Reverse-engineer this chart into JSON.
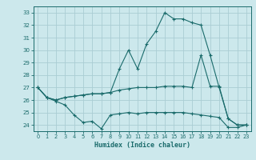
{
  "xlabel": "Humidex (Indice chaleur)",
  "background_color": "#cce8ec",
  "grid_color": "#aacdd4",
  "line_color": "#1a6b6b",
  "xlim": [
    -0.5,
    23.5
  ],
  "ylim": [
    23.5,
    33.5
  ],
  "x_ticks": [
    0,
    1,
    2,
    3,
    4,
    5,
    6,
    7,
    8,
    9,
    10,
    11,
    12,
    13,
    14,
    15,
    16,
    17,
    18,
    19,
    20,
    21,
    22,
    23
  ],
  "y_ticks": [
    24,
    25,
    26,
    27,
    28,
    29,
    30,
    31,
    32,
    33
  ],
  "series": [
    [
      27.0,
      26.2,
      25.9,
      25.6,
      24.8,
      24.2,
      24.3,
      23.7,
      24.8,
      24.9,
      25.0,
      24.9,
      25.0,
      25.0,
      25.0,
      25.0,
      25.0,
      24.9,
      24.8,
      24.7,
      24.6,
      23.8,
      23.8,
      24.0
    ],
    [
      27.0,
      26.2,
      26.0,
      26.2,
      26.3,
      26.4,
      26.5,
      26.5,
      26.6,
      26.8,
      26.9,
      27.0,
      27.0,
      27.0,
      27.1,
      27.1,
      27.1,
      27.0,
      29.6,
      27.1,
      27.1,
      24.5,
      24.0,
      24.0
    ],
    [
      27.0,
      26.2,
      26.0,
      26.2,
      26.3,
      26.4,
      26.5,
      26.5,
      26.6,
      28.5,
      30.0,
      28.5,
      30.5,
      31.5,
      33.0,
      32.5,
      32.5,
      32.2,
      32.0,
      29.6,
      27.0,
      24.5,
      24.0,
      24.0
    ]
  ]
}
